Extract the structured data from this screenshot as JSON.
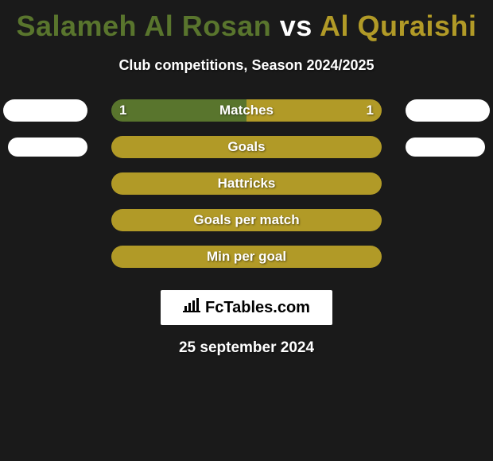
{
  "title": {
    "player1": "Salameh Al Rosan",
    "vs": "vs",
    "player2": "Al Quraishi"
  },
  "subtitle": "Club competitions, Season 2024/2025",
  "colors": {
    "player1": "#59752d",
    "player2": "#b19a27",
    "bg": "#1a1a1a",
    "pill": "#ffffff",
    "text": "#ffffff"
  },
  "rows": [
    {
      "label": "Matches",
      "left_val": "1",
      "right_val": "1",
      "left_color": "#59752d",
      "right_color": "#b19a27",
      "left_pct": 50,
      "right_pct": 50,
      "show_pills": true,
      "show_vals": true
    },
    {
      "label": "Goals",
      "left_val": "",
      "right_val": "",
      "left_color": "#b19a27",
      "right_color": "#b19a27",
      "left_pct": 0,
      "right_pct": 100,
      "show_pills": true,
      "show_vals": false
    },
    {
      "label": "Hattricks",
      "left_val": "",
      "right_val": "",
      "left_color": "#b19a27",
      "right_color": "#b19a27",
      "left_pct": 0,
      "right_pct": 100,
      "show_pills": false,
      "show_vals": false
    },
    {
      "label": "Goals per match",
      "left_val": "",
      "right_val": "",
      "left_color": "#b19a27",
      "right_color": "#b19a27",
      "left_pct": 0,
      "right_pct": 100,
      "show_pills": false,
      "show_vals": false
    },
    {
      "label": "Min per goal",
      "left_val": "",
      "right_val": "",
      "left_color": "#b19a27",
      "right_color": "#b19a27",
      "left_pct": 0,
      "right_pct": 100,
      "show_pills": false,
      "show_vals": false
    }
  ],
  "logo": {
    "text": "FcTables.com"
  },
  "date": "25 september 2024"
}
